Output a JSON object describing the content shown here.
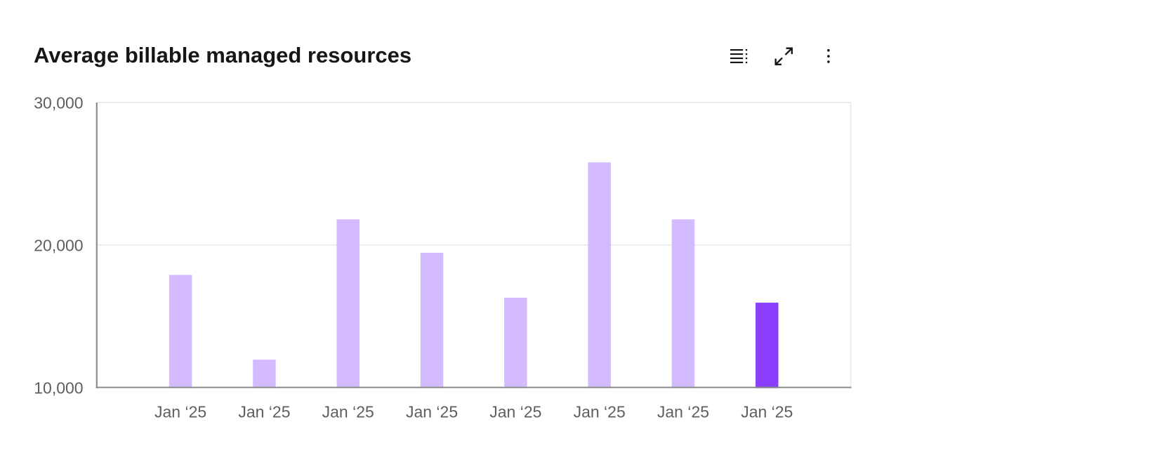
{
  "header": {
    "title": "Average billable managed resources"
  },
  "toolbar": {
    "buttons": [
      {
        "icon": "data-table-icon"
      },
      {
        "icon": "maximize-icon"
      },
      {
        "icon": "overflow-menu-icon"
      }
    ]
  },
  "chart_data": {
    "type": "bar",
    "title": "Average billable managed resources",
    "categories": [
      "Jan ‘25",
      "Jan ‘25",
      "Jan ‘25",
      "Jan ‘25",
      "Jan ‘25",
      "Jan ‘25",
      "Jan ‘25",
      "Jan ‘25"
    ],
    "values": [
      17900,
      11950,
      21800,
      19450,
      16300,
      25800,
      21800,
      15950
    ],
    "highlight_index": 7,
    "xlabel": "",
    "ylabel": "",
    "ylim": [
      10000,
      30000
    ],
    "y_ticks": [
      {
        "value": 30000,
        "label": "30,000"
      },
      {
        "value": 20000,
        "label": "20,000"
      },
      {
        "value": 10000,
        "label": "10,000"
      }
    ],
    "grid": "horizontal",
    "legend": "none",
    "colors": {
      "bar": "#d4bbff",
      "highlighted_bar": "#8a3ffc",
      "gridline": "#ececec",
      "axis_line": "#8d8d8d",
      "tick_label": "#5e5e5e"
    }
  }
}
